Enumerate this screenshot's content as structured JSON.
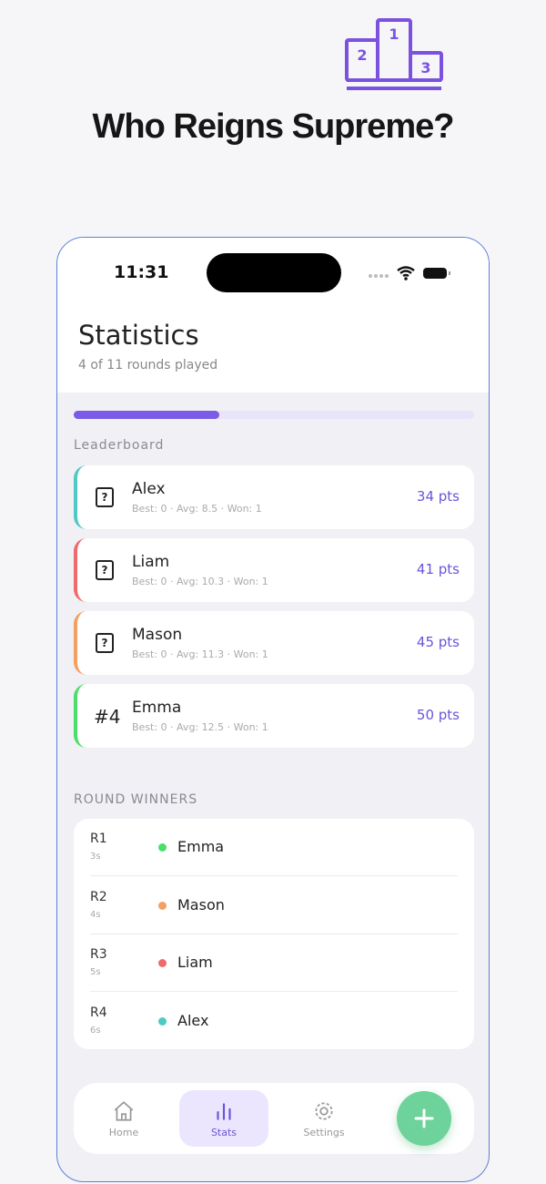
{
  "header": {
    "title": "Who Reigns Supreme?"
  },
  "status_bar": {
    "time": "11:31"
  },
  "screen": {
    "title": "Statistics",
    "subtitle": "4 of 11 rounds played",
    "progress": {
      "done": 4,
      "total": 11
    },
    "leaderboard_label": "Leaderboard",
    "players": [
      {
        "rank": "?",
        "name": "Alex",
        "stats": "Best: 0 · Avg: 8.5 · Won: 1",
        "points": "34 pts",
        "color": "#4fc9c4"
      },
      {
        "rank": "?",
        "name": "Liam",
        "stats": "Best: 0 · Avg: 10.3 · Won: 1",
        "points": "41 pts",
        "color": "#ee6b6b"
      },
      {
        "rank": "?",
        "name": "Mason",
        "stats": "Best: 0 · Avg: 11.3 · Won: 1",
        "points": "45 pts",
        "color": "#f3a062"
      },
      {
        "rank": "#4",
        "name": "Emma",
        "stats": "Best: 0 · Avg: 12.5 · Won: 1",
        "points": "50 pts",
        "color": "#4cde6a"
      }
    ],
    "winners_label": "ROUND WINNERS",
    "winners": [
      {
        "round": "R1",
        "time": "3s",
        "name": "Emma",
        "color": "#4cde6a"
      },
      {
        "round": "R2",
        "time": "4s",
        "name": "Mason",
        "color": "#f3a062"
      },
      {
        "round": "R3",
        "time": "5s",
        "name": "Liam",
        "color": "#ee6b6b"
      },
      {
        "round": "R4",
        "time": "6s",
        "name": "Alex",
        "color": "#4fc9c4"
      }
    ]
  },
  "nav": {
    "items": [
      "Home",
      "Stats",
      "Settings"
    ],
    "active": 1
  }
}
